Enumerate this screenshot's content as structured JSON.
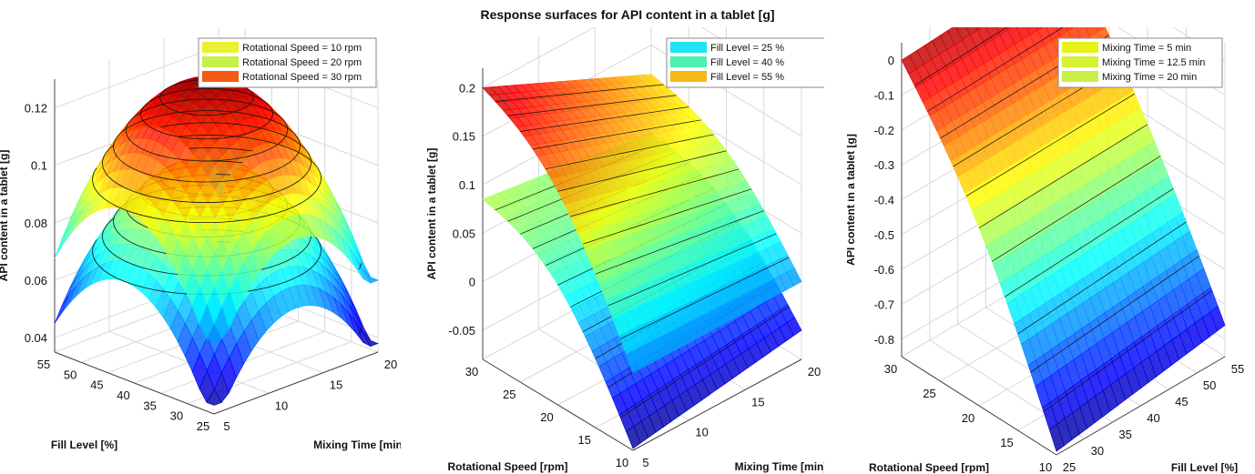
{
  "figure_title": "Response surfaces for API content in a tablet [g]",
  "chart_data": [
    {
      "type": "surface3d",
      "zlabel": "API content in a tablet [g]",
      "xlabel": "Fill Level [%]",
      "ylabel": "Mixing Time [min]",
      "x_ticks": [
        "25",
        "30",
        "35",
        "40",
        "45",
        "50",
        "55"
      ],
      "y_ticks": [
        "5",
        "10",
        "15",
        "20"
      ],
      "z_ticks": [
        "0.04",
        "0.06",
        "0.08",
        "0.1",
        "0.12"
      ],
      "xlim": [
        25,
        55
      ],
      "ylim": [
        5,
        20
      ],
      "zlim": [
        0.035,
        0.13
      ],
      "grid": true,
      "legend_position": "top-right",
      "series": [
        {
          "name": "Rotational Speed = 10 rpm",
          "color": "#e8f230"
        },
        {
          "name": "Rotational Speed = 20 rpm",
          "color": "#c8f046"
        },
        {
          "name": "Rotational Speed = 30 rpm",
          "color": "#f45a14"
        }
      ],
      "surfaces": [
        {
          "center": [
            0.56,
            12.5
          ],
          "peak": 0.1,
          "min": 0.038
        },
        {
          "center": [
            0.56,
            12.5
          ],
          "peak": 0.128,
          "min": 0.06
        }
      ]
    },
    {
      "type": "surface3d",
      "zlabel": "API content in a tablet [g]",
      "xlabel": "Rotational Speed [rpm]",
      "ylabel": "Mixing Time [min]",
      "x_ticks": [
        "10",
        "15",
        "20",
        "25",
        "30"
      ],
      "y_ticks": [
        "5",
        "10",
        "15",
        "20"
      ],
      "z_ticks": [
        "-0.05",
        "0",
        "0.05",
        "0.1",
        "0.15",
        "0.2"
      ],
      "xlim": [
        10,
        30
      ],
      "ylim": [
        5,
        20
      ],
      "zlim": [
        -0.08,
        0.22
      ],
      "grid": true,
      "legend_position": "top-right",
      "series": [
        {
          "name": "Fill Level = 25 %",
          "color": "#1ee4f4"
        },
        {
          "name": "Fill Level = 40 %",
          "color": "#4ef0b4"
        },
        {
          "name": "Fill Level = 55 %",
          "color": "#f8b818"
        }
      ],
      "surfaces": [
        {
          "z00": -0.078,
          "z10": 0.085,
          "z01": -0.05,
          "z11": 0.06
        },
        {
          "z00": 0.0,
          "z10": 0.2,
          "z01": 0.0,
          "z11": 0.12
        }
      ]
    },
    {
      "type": "surface3d",
      "zlabel": "API content in a tablet [g]",
      "xlabel": "Rotational Speed [rpm]",
      "ylabel": "Fill Level [%]",
      "x_ticks": [
        "10",
        "15",
        "20",
        "25",
        "30"
      ],
      "y_ticks": [
        "25",
        "30",
        "35",
        "40",
        "45",
        "50",
        "55"
      ],
      "z_ticks": [
        "-0.8",
        "-0.7",
        "-0.6",
        "-0.5",
        "-0.4",
        "-0.3",
        "-0.2",
        "-0.1",
        "0"
      ],
      "xlim": [
        10,
        30
      ],
      "ylim": [
        25,
        55
      ],
      "zlim": [
        -0.85,
        0.05
      ],
      "grid": true,
      "legend_position": "top-right",
      "series": [
        {
          "name": "Mixing Time = 5 min",
          "color": "#e8f218"
        },
        {
          "name": "Mixing Time = 12.5 min",
          "color": "#d6f232"
        },
        {
          "name": "Mixing Time = 20 min",
          "color": "#c8f046"
        }
      ],
      "surfaces": [
        {
          "z00": -0.84,
          "z10": 0.0,
          "z01": -0.76,
          "z11": 0.03
        }
      ]
    }
  ]
}
